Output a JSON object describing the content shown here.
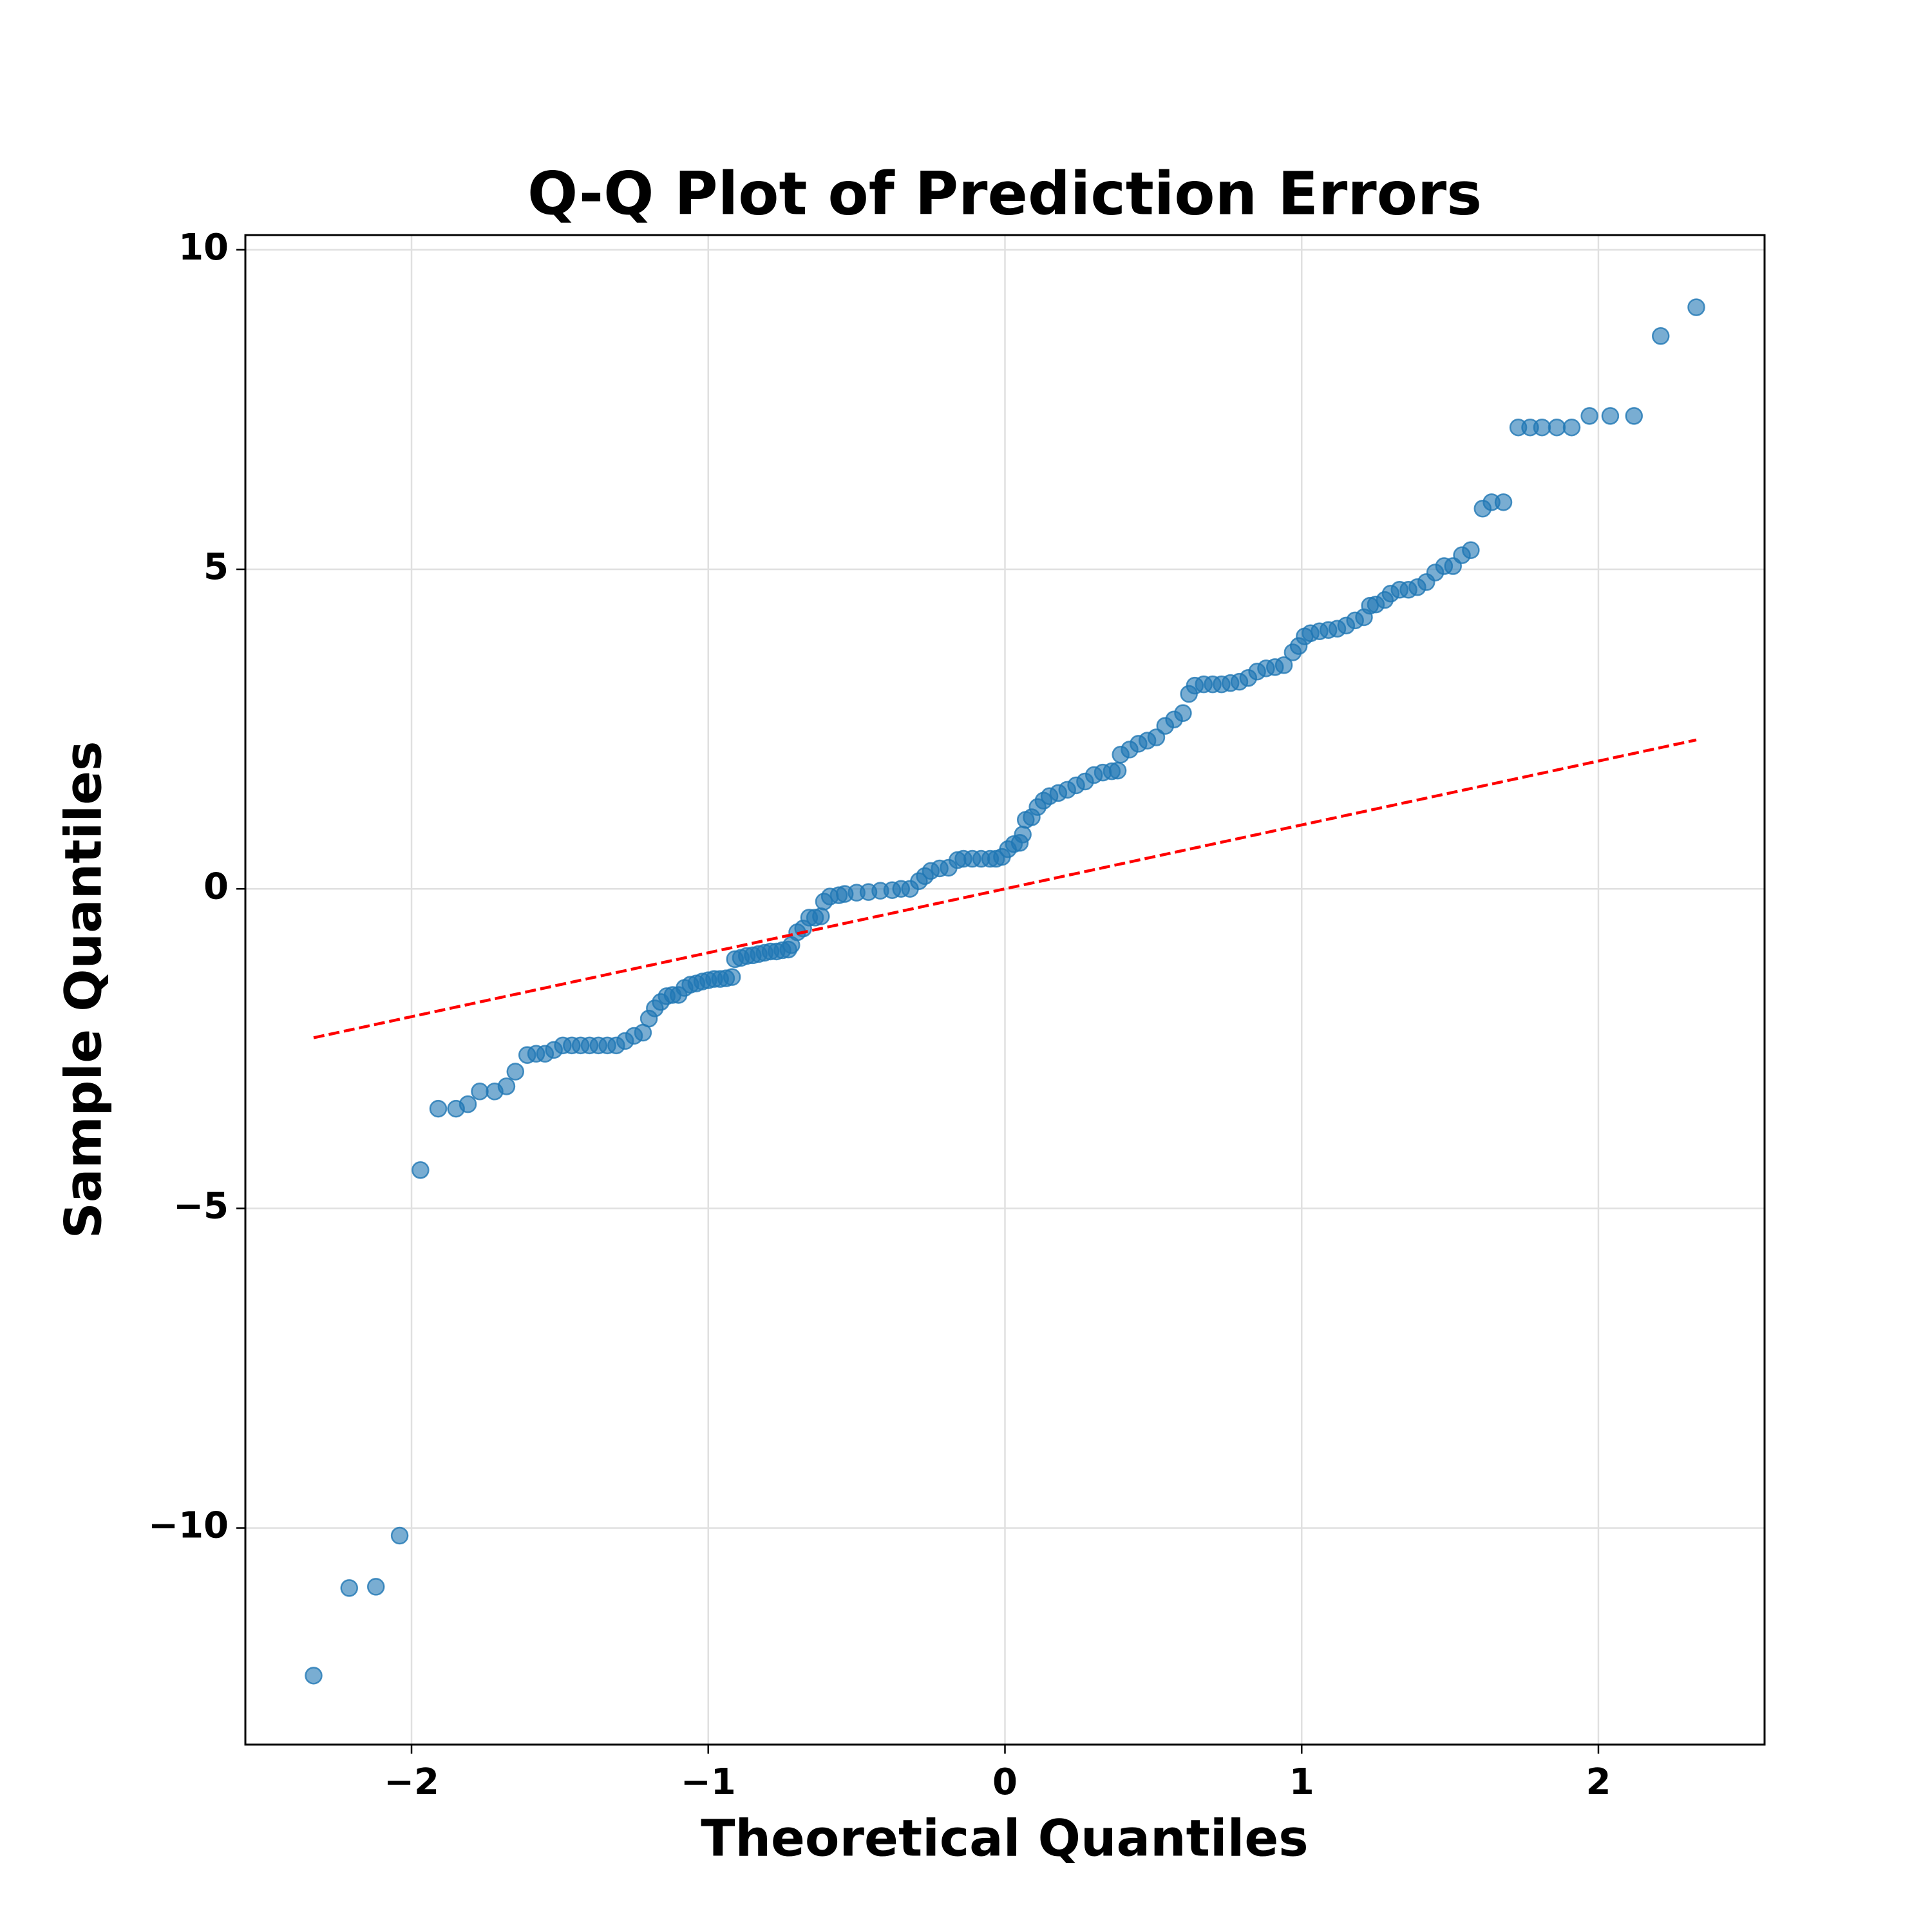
{
  "chart_data": {
    "type": "scatter",
    "title": "Q-Q Plot of Prediction Errors",
    "x_label": "Theoretical Quantiles",
    "y_label": "Sample Quantiles",
    "x": [
      -2.33,
      -2.21,
      -2.12,
      -2.04,
      -1.97,
      -1.91,
      -1.85,
      -1.81,
      -1.77,
      -1.72,
      -1.68,
      -1.65,
      -1.61,
      -1.58,
      -1.55,
      -1.52,
      -1.49,
      -1.46,
      -1.43,
      -1.4,
      -1.37,
      -1.34,
      -1.31,
      -1.28,
      -1.25,
      -1.22,
      -1.2,
      -1.18,
      -1.16,
      -1.14,
      -1.12,
      -1.1,
      -1.08,
      -1.06,
      -1.04,
      -1.02,
      -1.0,
      -0.98,
      -0.96,
      -0.94,
      -0.92,
      -0.91,
      -0.89,
      -0.87,
      -0.85,
      -0.83,
      -0.81,
      -0.79,
      -0.77,
      -0.75,
      -0.73,
      -0.72,
      -0.7,
      -0.68,
      -0.66,
      -0.64,
      -0.62,
      -0.61,
      -0.59,
      -0.56,
      -0.54,
      -0.5,
      -0.46,
      -0.42,
      -0.38,
      -0.35,
      -0.32,
      -0.29,
      -0.27,
      -0.25,
      -0.22,
      -0.19,
      -0.16,
      -0.14,
      -0.11,
      -0.08,
      -0.05,
      -0.03,
      -0.01,
      0.01,
      0.03,
      0.05,
      0.06,
      0.07,
      0.09,
      0.11,
      0.13,
      0.15,
      0.18,
      0.21,
      0.24,
      0.27,
      0.3,
      0.33,
      0.36,
      0.38,
      0.39,
      0.42,
      0.45,
      0.48,
      0.51,
      0.54,
      0.57,
      0.6,
      0.62,
      0.64,
      0.67,
      0.7,
      0.73,
      0.76,
      0.79,
      0.82,
      0.85,
      0.88,
      0.91,
      0.94,
      0.97,
      0.99,
      1.01,
      1.03,
      1.06,
      1.09,
      1.12,
      1.15,
      1.18,
      1.21,
      1.23,
      1.25,
      1.28,
      1.3,
      1.33,
      1.36,
      1.39,
      1.42,
      1.45,
      1.48,
      1.51,
      1.54,
      1.57,
      1.61,
      1.64,
      1.68,
      1.73,
      1.77,
      1.81,
      1.86,
      1.91,
      1.97,
      2.04,
      2.12,
      2.21,
      2.33
    ],
    "values": [
      -12.31,
      -10.94,
      -10.92,
      -10.12,
      -4.4,
      -3.44,
      -3.44,
      -3.37,
      -3.17,
      -3.17,
      -3.09,
      -2.86,
      -2.6,
      -2.58,
      -2.58,
      -2.52,
      -2.45,
      -2.45,
      -2.45,
      -2.45,
      -2.45,
      -2.45,
      -2.45,
      -2.38,
      -2.3,
      -2.25,
      -2.03,
      -1.87,
      -1.77,
      -1.68,
      -1.66,
      -1.66,
      -1.55,
      -1.5,
      -1.48,
      -1.45,
      -1.43,
      -1.41,
      -1.41,
      -1.4,
      -1.38,
      -1.1,
      -1.08,
      -1.05,
      -1.04,
      -1.02,
      -1.0,
      -0.98,
      -0.98,
      -0.96,
      -0.95,
      -0.88,
      -0.68,
      -0.62,
      -0.45,
      -0.45,
      -0.43,
      -0.2,
      -0.12,
      -0.1,
      -0.08,
      -0.06,
      -0.05,
      -0.03,
      -0.02,
      0,
      0,
      0.12,
      0.2,
      0.28,
      0.32,
      0.33,
      0.45,
      0.47,
      0.47,
      0.47,
      0.47,
      0.47,
      0.5,
      0.62,
      0.7,
      0.72,
      0.85,
      1.08,
      1.12,
      1.28,
      1.38,
      1.45,
      1.5,
      1.55,
      1.62,
      1.68,
      1.78,
      1.82,
      1.84,
      1.85,
      2.1,
      2.18,
      2.27,
      2.32,
      2.37,
      2.55,
      2.65,
      2.75,
      3.05,
      3.18,
      3.2,
      3.2,
      3.2,
      3.22,
      3.24,
      3.3,
      3.4,
      3.45,
      3.47,
      3.5,
      3.7,
      3.8,
      3.95,
      4.0,
      4.03,
      4.05,
      4.07,
      4.12,
      4.2,
      4.25,
      4.43,
      4.45,
      4.52,
      4.62,
      4.68,
      4.68,
      4.72,
      4.8,
      4.95,
      5.05,
      5.05,
      5.22,
      5.3,
      5.95,
      6.05,
      6.05,
      7.22,
      7.22,
      7.22,
      7.22,
      7.22,
      7.4,
      7.4,
      7.4,
      8.65,
      9.1
    ],
    "color": "#1f77b4",
    "reference_line": {
      "x": [
        -2.33,
        2.33
      ],
      "values": [
        -2.33,
        2.33
      ],
      "color": "#ff0000",
      "style": "dashed"
    },
    "xlim": [
      -2.56,
      2.56
    ],
    "ylim": [
      -13.39,
      10.23
    ],
    "xticks": [
      {
        "value": -2,
        "label": "−2"
      },
      {
        "value": -1,
        "label": "−1"
      },
      0,
      1,
      2
    ],
    "yticks": [
      {
        "value": -10,
        "label": "−10"
      },
      {
        "value": -5,
        "label": "−5"
      },
      0,
      5,
      10
    ],
    "grid": true
  }
}
